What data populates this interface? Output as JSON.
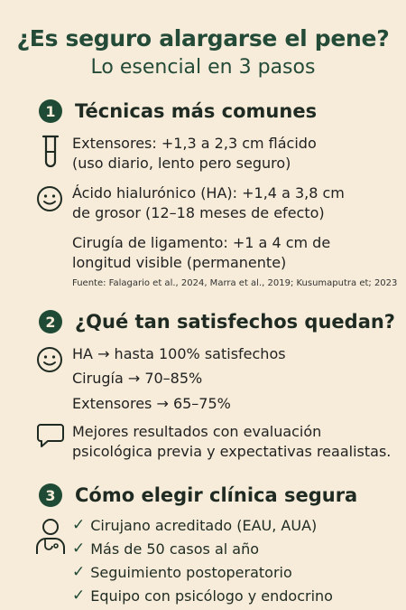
{
  "header": {
    "title": "¿Es seguro alargarse el pene?",
    "subtitle": "Lo esencial en 3 pasos"
  },
  "sections": [
    {
      "number": "1",
      "title": "Técnicas más comunes",
      "items": [
        {
          "icon": "test-tube-icon",
          "lines": [
            "Extensores:  +1,3 a 2,3 cm flácido",
            "(uso diario, lento pero seguro)"
          ]
        },
        {
          "icon": "smiley-icon",
          "lines": [
            "Ácido hialurónico (HA):  +1,4 a 3,8 cm",
            "de grosor (12–18 meses de efecto)"
          ]
        },
        {
          "icon": "",
          "lines": [
            "Cirugía de ligamento: +1 a 4 cm de",
            "longitud visible (permanente)"
          ]
        }
      ],
      "source": "Fuente: Falagario et al., 2024, Marra et al., 2019; Kusumaputra et; 2023"
    },
    {
      "number": "2",
      "title": "¿Qué tan satisfechos quedan?",
      "rates": [
        "HA → hasta 100% satisfechos",
        "Cirugía → 70–85%",
        "Extensores → 65–75%"
      ],
      "note": [
        "Mejores resultados con evaluación",
        "psicológica previa y expectativas reaalistas."
      ]
    },
    {
      "number": "3",
      "title": "Cómo elegir clínica segura",
      "checks": [
        "Cirujano acreditado (EAU, AUA)",
        "Más de 50 casos al año",
        "Seguimiento postoperatorio",
        "Equipo con psicólogo y endocrino"
      ]
    }
  ]
}
